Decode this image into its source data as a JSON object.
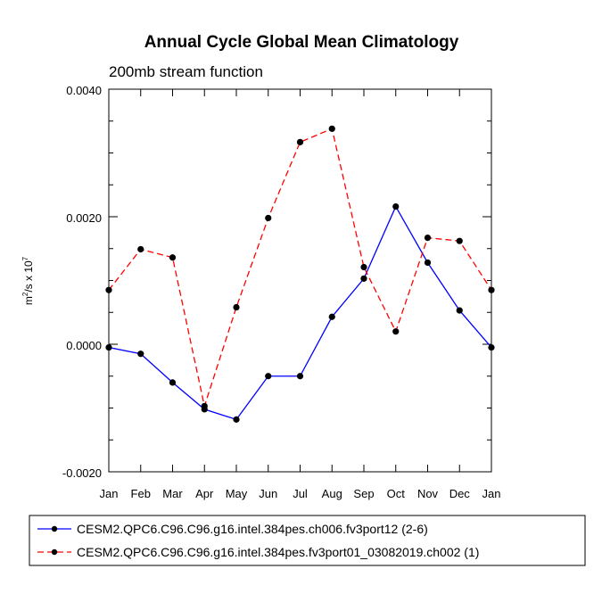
{
  "chart_data": {
    "type": "line",
    "title": "Annual Cycle Global Mean Climatology",
    "subtitle": "200mb stream function",
    "ylabel_main": "m",
    "ylabel_sup1": "2",
    "ylabel_mid": "/s x 10",
    "ylabel_sup2": "7",
    "xlabel": "",
    "categories": [
      "Jan",
      "Feb",
      "Mar",
      "Apr",
      "May",
      "Jun",
      "Jul",
      "Aug",
      "Sep",
      "Oct",
      "Nov",
      "Dec",
      "Jan"
    ],
    "ylim": [
      -0.002,
      0.004
    ],
    "yticks": [
      -0.002,
      0.0,
      0.002,
      0.004
    ],
    "ytick_labels": [
      "-0.0020",
      "0.0000",
      "0.0020",
      "0.0040"
    ],
    "series": [
      {
        "name": "CESM2.QPC6.C96.C96.g16.intel.384pes.ch006.fv3port12 (2-6)",
        "color": "#0000ff",
        "style": "solid",
        "values": [
          -5e-05,
          -0.00015,
          -0.0006,
          -0.00102,
          -0.00118,
          -0.0005,
          -0.0005,
          0.00043,
          0.00103,
          0.00216,
          0.00128,
          0.00053,
          -5e-05
        ]
      },
      {
        "name": "CESM2.QPC6.C96.C96.g16.intel.384pes.fv3port01_03082019.ch002 (1)",
        "color": "#ff0000",
        "style": "dashed",
        "values": [
          0.00085,
          0.00149,
          0.00136,
          -0.00097,
          0.00058,
          0.00198,
          0.00317,
          0.00338,
          0.00121,
          0.0002,
          0.00167,
          0.00162,
          0.00085
        ]
      }
    ],
    "legend_position": "bottom"
  }
}
